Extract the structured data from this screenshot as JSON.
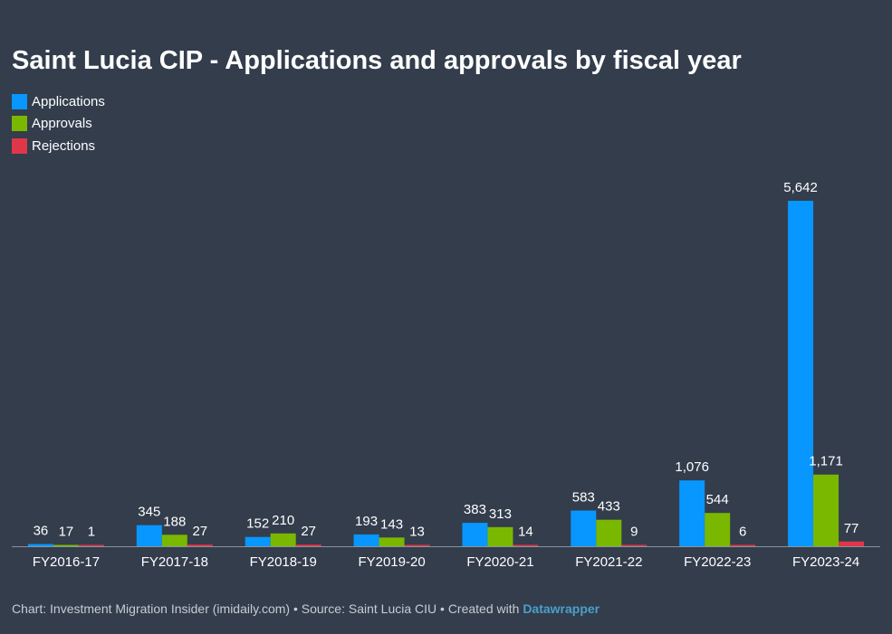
{
  "chart_data": {
    "type": "bar",
    "title": "Saint Lucia CIP - Applications and approvals by fiscal year",
    "categories": [
      "FY2016-17",
      "FY2017-18",
      "FY2018-19",
      "FY2019-20",
      "FY2020-21",
      "FY2021-22",
      "FY2022-23",
      "FY2023-24"
    ],
    "series": [
      {
        "name": "Applications",
        "color": "#0797ff",
        "values": [
          36,
          345,
          152,
          193,
          383,
          583,
          1076,
          5642
        ],
        "labels": [
          "36",
          "345",
          "152",
          "193",
          "383",
          "583",
          "1,076",
          "5,642"
        ]
      },
      {
        "name": "Approvals",
        "color": "#7ab800",
        "values": [
          17,
          188,
          210,
          143,
          313,
          433,
          544,
          1171
        ],
        "labels": [
          "17",
          "188",
          "210",
          "143",
          "313",
          "433",
          "544",
          "1,171"
        ]
      },
      {
        "name": "Rejections",
        "color": "#e0364a",
        "values": [
          1,
          27,
          27,
          13,
          14,
          9,
          6,
          77
        ],
        "labels": [
          "1",
          "27",
          "27",
          "13",
          "14",
          "9",
          "6",
          "77"
        ]
      }
    ],
    "xlabel": "",
    "ylabel": "",
    "ylim": [
      0,
      5642
    ],
    "legend_position": "top-left",
    "grid": false
  },
  "footer": {
    "text": "Chart: Investment Migration Insider (imidaily.com) • Source: Saint Lucia CIU • Created with ",
    "brand": "Datawrapper"
  }
}
